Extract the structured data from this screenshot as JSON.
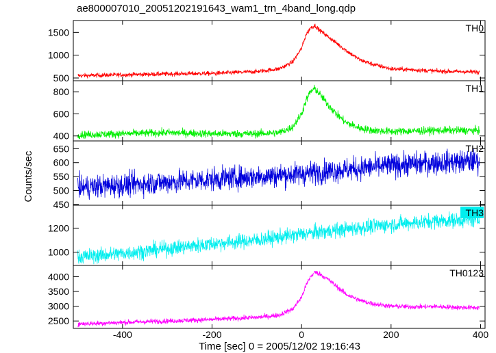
{
  "chart_data": {
    "type": "line",
    "title": "ae800007010_20051202191643_wam1_trn_4band_long.qdp",
    "xlabel": "Time [sec] 0 = 2005/12/02 19:16:43",
    "ylabel": "Counts/sec",
    "xlim": [
      -510,
      410
    ],
    "x_ticks": [
      "-400",
      "-200",
      "0",
      "200",
      "400"
    ],
    "x_tick_values": [
      -400,
      -200,
      0,
      200,
      400
    ],
    "panels": [
      {
        "name": "TH0",
        "color": "#ff0000",
        "ylim": [
          440,
          1760
        ],
        "y_ticks": [
          500,
          1000,
          1500
        ],
        "y_tick_labels": [
          "500",
          "1000",
          "1500"
        ],
        "x": [
          -500,
          -400,
          -300,
          -200,
          -100,
          -50,
          -20,
          0,
          10,
          20,
          30,
          40,
          60,
          80,
          100,
          130,
          160,
          200,
          250,
          300,
          350,
          395
        ],
        "y": [
          550,
          570,
          590,
          600,
          640,
          700,
          850,
          1150,
          1450,
          1600,
          1650,
          1550,
          1400,
          1250,
          1100,
          900,
          800,
          700,
          680,
          650,
          640,
          630
        ],
        "noise": 35
      },
      {
        "name": "TH1",
        "color": "#00ee00",
        "ylim": [
          355,
          900
        ],
        "y_ticks": [
          400,
          600,
          800
        ],
        "y_tick_labels": [
          "400",
          "600",
          "800"
        ],
        "x": [
          -500,
          -400,
          -300,
          -200,
          -100,
          -50,
          -20,
          0,
          10,
          20,
          30,
          40,
          60,
          80,
          100,
          130,
          160,
          200,
          250,
          300,
          350,
          395
        ],
        "y": [
          410,
          420,
          430,
          420,
          420,
          430,
          480,
          600,
          720,
          800,
          830,
          780,
          680,
          590,
          520,
          470,
          450,
          440,
          445,
          450,
          450,
          450
        ],
        "noise": 25
      },
      {
        "name": "TH2",
        "color": "#0000dd",
        "ylim": [
          447,
          678
        ],
        "y_ticks": [
          450,
          500,
          550,
          600,
          650
        ],
        "y_tick_labels": [
          "450",
          "500",
          "550",
          "600",
          "650"
        ],
        "x": [
          -500,
          -400,
          -300,
          -200,
          -100,
          0,
          100,
          200,
          300,
          395
        ],
        "y": [
          510,
          520,
          530,
          540,
          550,
          560,
          575,
          590,
          600,
          605
        ],
        "noise": 30
      },
      {
        "name": "TH3",
        "color": "#00eeee",
        "ylim": [
          890,
          1390
        ],
        "y_ticks": [
          1000,
          1200
        ],
        "y_tick_labels": [
          "1000",
          "1200"
        ],
        "x": [
          -500,
          -400,
          -300,
          -200,
          -100,
          0,
          100,
          200,
          300,
          395
        ],
        "y": [
          960,
          990,
          1030,
          1070,
          1100,
          1150,
          1190,
          1230,
          1260,
          1270
        ],
        "noise": 45
      },
      {
        "name": "TH0123",
        "color": "#ff00ff",
        "ylim": [
          2250,
          4380
        ],
        "y_ticks": [
          2500,
          3000,
          3500,
          4000
        ],
        "y_tick_labels": [
          "2500",
          "3000",
          "3500",
          "4000"
        ],
        "x": [
          -500,
          -400,
          -300,
          -200,
          -100,
          -50,
          -20,
          0,
          10,
          20,
          30,
          40,
          60,
          80,
          100,
          130,
          160,
          200,
          250,
          300,
          350,
          395
        ],
        "y": [
          2400,
          2450,
          2500,
          2550,
          2620,
          2700,
          2900,
          3300,
          3700,
          4000,
          4150,
          4100,
          3900,
          3650,
          3400,
          3200,
          3080,
          3000,
          2980,
          2990,
          2960,
          2950
        ],
        "noise": 60
      }
    ]
  }
}
